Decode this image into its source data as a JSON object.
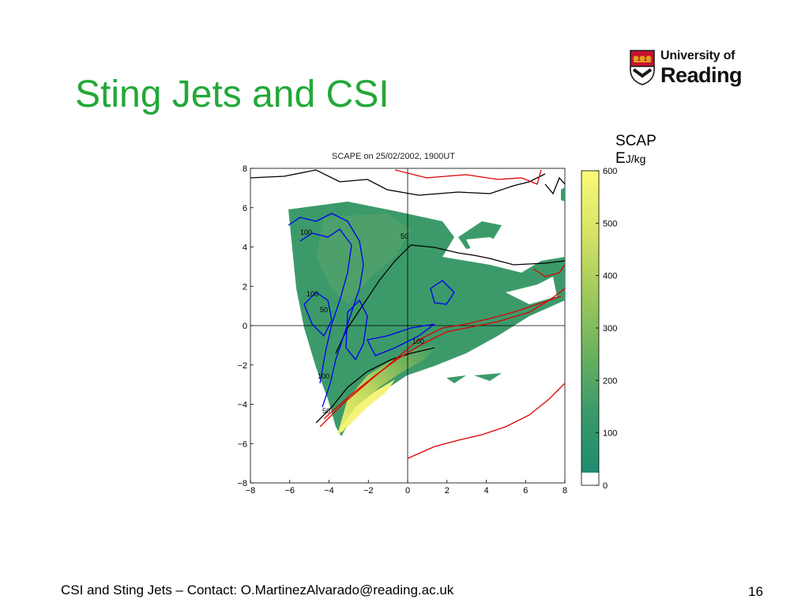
{
  "slide": {
    "title": "Sting Jets and CSI",
    "footer": "CSI and Sting Jets – Contact: O.MartinezAlvarado@reading.ac.uk",
    "page_number": "16"
  },
  "logo": {
    "line1": "University of",
    "line2": "Reading",
    "colors": {
      "shield_red": "#c8102e",
      "shield_dark": "#1a1a1a",
      "crown_gold": "#e0a020"
    }
  },
  "colorbar": {
    "label_line1": "SCAP",
    "label_line2": "E",
    "unit": "J/kg",
    "ticks": [
      "600",
      "500",
      "400",
      "300",
      "200",
      "100",
      "0"
    ],
    "colors": [
      "#ffffff",
      "#1e8c6e",
      "#3a9a6a",
      "#5aa862",
      "#7bb85a",
      "#9ec85a",
      "#c3d85a",
      "#e3e86a",
      "#fafa78"
    ]
  },
  "chart_data": {
    "type": "heatmap",
    "title": "SCAPE on 25/02/2002, 1900UT",
    "xlabel": "",
    "ylabel": "",
    "xlim": [
      -8,
      8
    ],
    "ylim": [
      -8,
      8
    ],
    "x_ticks": [
      "−8",
      "−6",
      "−4",
      "−2",
      "0",
      "2",
      "4",
      "6",
      "8"
    ],
    "y_ticks": [
      "8",
      "6",
      "4",
      "2",
      "0",
      "−2",
      "−4",
      "−6",
      "−8"
    ],
    "colorbar_range": [
      0,
      600
    ],
    "contour_labels": [
      "100",
      "50",
      "100",
      "50",
      "100",
      "100",
      "50"
    ],
    "series": [
      {
        "color": "#0000ee"
      },
      {
        "color": "#dd0000"
      },
      {
        "color": "#000000"
      }
    ]
  }
}
